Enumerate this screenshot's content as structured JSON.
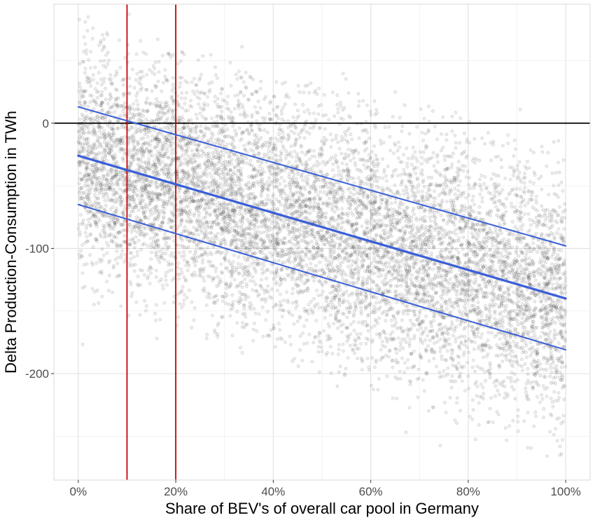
{
  "chart_data": {
    "type": "scatter",
    "title": "",
    "xlabel": "Share of BEV's of overall car pool in Germany",
    "ylabel": "Delta Production-Consumption in TWh",
    "xlim": [
      -0.05,
      1.05
    ],
    "ylim": [
      -285,
      95
    ],
    "x_ticks": [
      {
        "value": 0.0,
        "label": "0%"
      },
      {
        "value": 0.2,
        "label": "20%"
      },
      {
        "value": 0.4,
        "label": "40%"
      },
      {
        "value": 0.6,
        "label": "60%"
      },
      {
        "value": 0.8,
        "label": "80%"
      },
      {
        "value": 1.0,
        "label": "100%"
      }
    ],
    "y_ticks": [
      {
        "value": 0,
        "label": "0"
      },
      {
        "value": -100,
        "label": "-100"
      },
      {
        "value": -200,
        "label": "-200"
      }
    ],
    "grid": true,
    "scatter_cloud": {
      "color": "#000000",
      "opacity": 0.12,
      "x_range": [
        0.0,
        1.0
      ],
      "y_at_x0": {
        "center": -25,
        "spread_low": -135,
        "spread_high": 75
      },
      "y_at_x1": {
        "center": -140,
        "spread_low": -268,
        "spread_high": -25
      }
    },
    "regression_lines": [
      {
        "role": "upper",
        "color": "#3a5fd9",
        "x": [
          0.0,
          1.0
        ],
        "y": [
          13,
          -98
        ]
      },
      {
        "role": "fit",
        "color": "#3a5fd9",
        "x": [
          0.0,
          1.0
        ],
        "y": [
          -26,
          -140
        ]
      },
      {
        "role": "lower",
        "color": "#3a5fd9",
        "x": [
          0.0,
          1.0
        ],
        "y": [
          -65,
          -181
        ]
      }
    ],
    "reference_lines": [
      {
        "orientation": "horizontal",
        "value": 0,
        "color": "#000000"
      },
      {
        "orientation": "vertical",
        "value": 0.1,
        "color": "#cc0000"
      },
      {
        "orientation": "vertical",
        "value": 0.2,
        "color": "#cc0000"
      }
    ]
  }
}
